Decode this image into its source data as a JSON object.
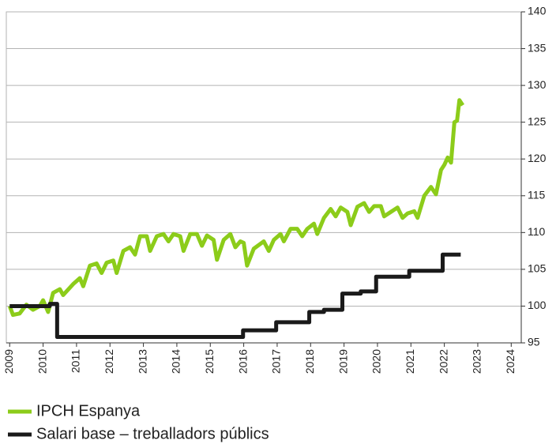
{
  "chart_data": {
    "type": "line",
    "xlim": [
      2008.9,
      2024.3
    ],
    "xticks": [
      2009,
      2010,
      2011,
      2012,
      2013,
      2014,
      2015,
      2016,
      2017,
      2018,
      2019,
      2020,
      2021,
      2022,
      2023,
      2024
    ],
    "ylim": [
      95,
      140
    ],
    "yticks": [
      95,
      100,
      105,
      110,
      115,
      120,
      125,
      130,
      135,
      140
    ],
    "grid": true,
    "series": [
      {
        "name": "IPCH Espanya",
        "color": "#8ccc1a",
        "x": [
          2009.0,
          2009.1,
          2009.3,
          2009.5,
          2009.7,
          2009.9,
          2010.0,
          2010.15,
          2010.3,
          2010.5,
          2010.6,
          2010.9,
          2011.1,
          2011.2,
          2011.4,
          2011.6,
          2011.75,
          2011.9,
          2012.1,
          2012.2,
          2012.4,
          2012.6,
          2012.75,
          2012.9,
          2013.1,
          2013.2,
          2013.4,
          2013.6,
          2013.75,
          2013.9,
          2014.1,
          2014.2,
          2014.4,
          2014.6,
          2014.75,
          2014.9,
          2015.1,
          2015.2,
          2015.4,
          2015.6,
          2015.75,
          2015.9,
          2016.0,
          2016.1,
          2016.3,
          2016.6,
          2016.75,
          2016.9,
          2017.1,
          2017.2,
          2017.4,
          2017.6,
          2017.75,
          2017.9,
          2018.1,
          2018.2,
          2018.4,
          2018.6,
          2018.75,
          2018.9,
          2019.1,
          2019.2,
          2019.4,
          2019.6,
          2019.75,
          2019.9,
          2020.1,
          2020.2,
          2020.4,
          2020.6,
          2020.75,
          2020.9,
          2021.1,
          2021.2,
          2021.4,
          2021.6,
          2021.75,
          2021.9,
          2022.0,
          2022.1,
          2022.2,
          2022.3,
          2022.38,
          2022.45,
          2022.55
        ],
        "values": [
          100,
          98.8,
          99,
          100.2,
          99.5,
          100,
          100.8,
          99.2,
          101.8,
          102.3,
          101.5,
          103,
          103.8,
          102.7,
          105.5,
          105.8,
          104.5,
          105.9,
          106.2,
          104.5,
          107.5,
          108,
          107,
          109.5,
          109.5,
          107.5,
          109.5,
          109.8,
          108.8,
          109.8,
          109.5,
          107.5,
          109.8,
          109.8,
          108.2,
          109.6,
          109,
          106.3,
          109,
          109.8,
          108,
          108.8,
          108.6,
          105.5,
          107.8,
          108.8,
          107.5,
          109,
          109.8,
          108.8,
          110.5,
          110.5,
          109.5,
          110.5,
          111.2,
          109.8,
          112,
          113.2,
          112.2,
          113.4,
          112.8,
          111,
          113.5,
          114,
          112.8,
          113.6,
          113.6,
          112.2,
          112.8,
          113.4,
          112,
          112.6,
          112.9,
          112,
          115,
          116.2,
          115.2,
          118.5,
          119.2,
          120.2,
          119.5,
          125,
          125.2,
          128,
          127.3
        ]
      },
      {
        "name": "Salari base – treballadors públics",
        "color": "#1a1a1a",
        "x": [
          2009.0,
          2010.2,
          2010.2,
          2010.42,
          2010.42,
          2015.98,
          2015.98,
          2016.97,
          2016.97,
          2017.96,
          2017.96,
          2018.4,
          2018.4,
          2018.95,
          2018.95,
          2019.5,
          2019.5,
          2019.96,
          2019.96,
          2020.95,
          2020.95,
          2021.95,
          2021.95,
          2022.49
        ],
        "values": [
          100,
          100,
          100.3,
          100.3,
          95.8,
          95.8,
          96.7,
          96.7,
          97.8,
          97.8,
          99.2,
          99.2,
          99.5,
          99.5,
          101.7,
          101.7,
          102,
          102,
          104,
          104,
          104.8,
          104.8,
          107,
          107
        ]
      }
    ]
  }
}
